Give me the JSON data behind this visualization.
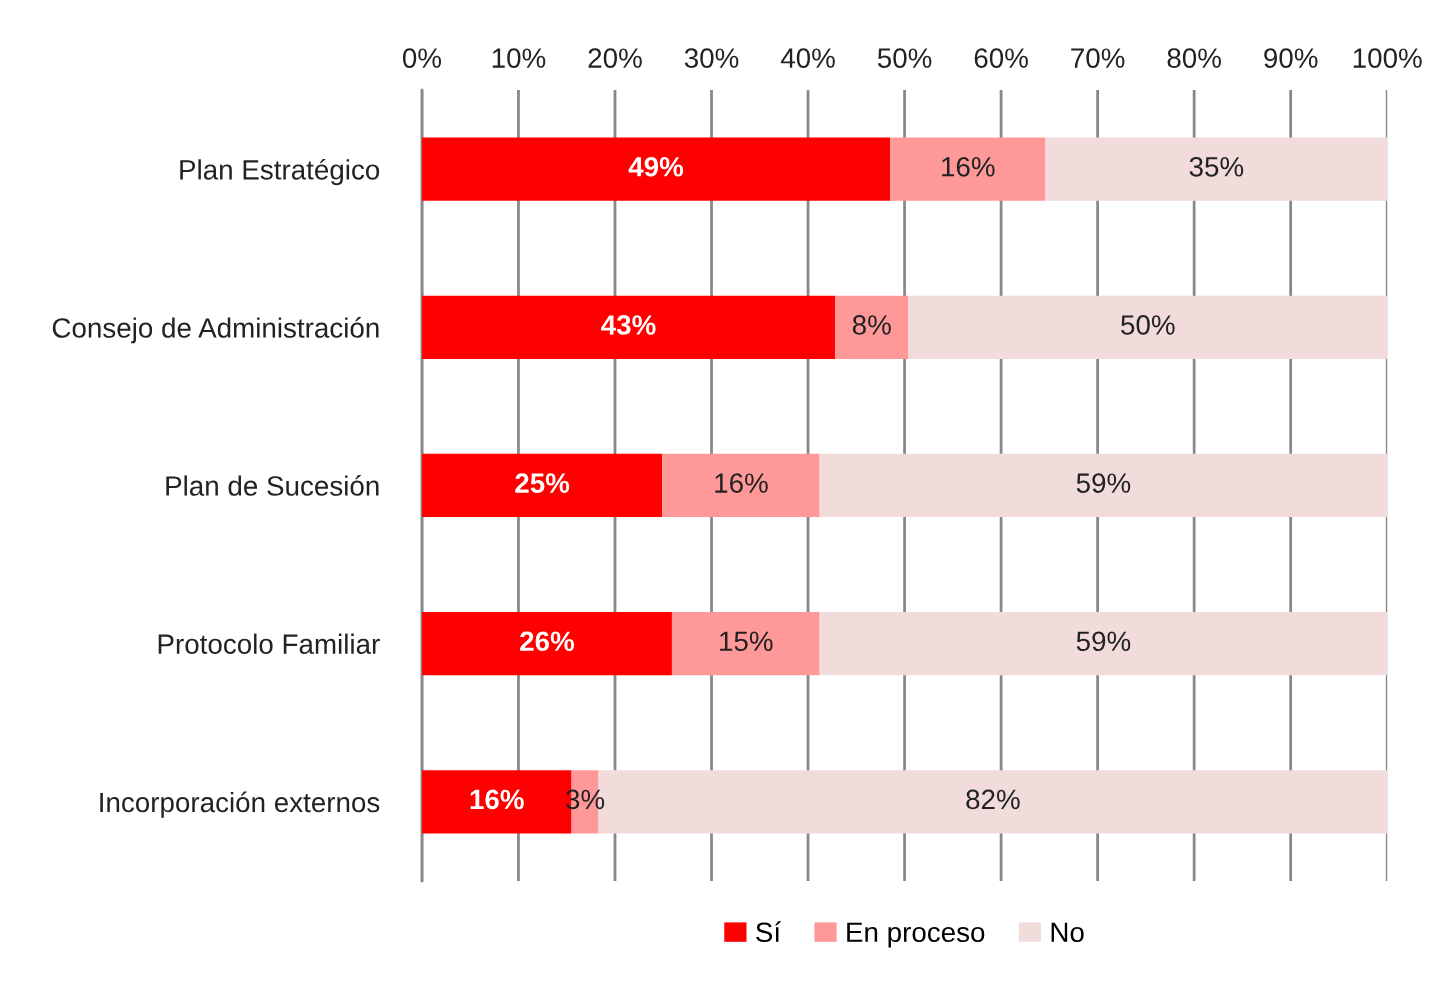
{
  "chart_data": {
    "type": "bar",
    "orientation": "horizontal",
    "stacked": true,
    "categories": [
      "Plan Estratégico",
      "Consejo de Administración",
      "Plan de Sucesión",
      "Protocolo Familiar",
      "Incorporación externos"
    ],
    "series": [
      {
        "name": "Sí",
        "color": "#ff0000",
        "values": [
          48.5,
          42.8,
          24.9,
          25.9,
          15.5
        ],
        "value_labels": [
          "49%",
          "43%",
          "25%",
          "26%",
          "16%"
        ]
      },
      {
        "name": "En proceso",
        "color": "#ff9999",
        "values": [
          16.1,
          7.6,
          16.3,
          15.3,
          2.8
        ],
        "value_labels": [
          "16%",
          "8%",
          "16%",
          "15%",
          "3%"
        ]
      },
      {
        "name": "No",
        "color": "#f2dcdb",
        "values": [
          35.4,
          49.6,
          58.8,
          58.8,
          81.7
        ],
        "value_labels": [
          "35%",
          "50%",
          "59%",
          "59%",
          "82%"
        ]
      }
    ],
    "xlim": [
      0,
      100
    ],
    "xticks": [
      {
        "value": 0,
        "label": "0%"
      },
      {
        "value": 10,
        "label": "10%"
      },
      {
        "value": 20,
        "label": "20%"
      },
      {
        "value": 30,
        "label": "30%"
      },
      {
        "value": 40,
        "label": "40%"
      },
      {
        "value": 50,
        "label": "50%"
      },
      {
        "value": 60,
        "label": "60%"
      },
      {
        "value": 70,
        "label": "70%"
      },
      {
        "value": 80,
        "label": "80%"
      },
      {
        "value": 90,
        "label": "90%"
      },
      {
        "value": 100,
        "label": "100%"
      }
    ],
    "grid": "x",
    "legend": "bottom"
  }
}
